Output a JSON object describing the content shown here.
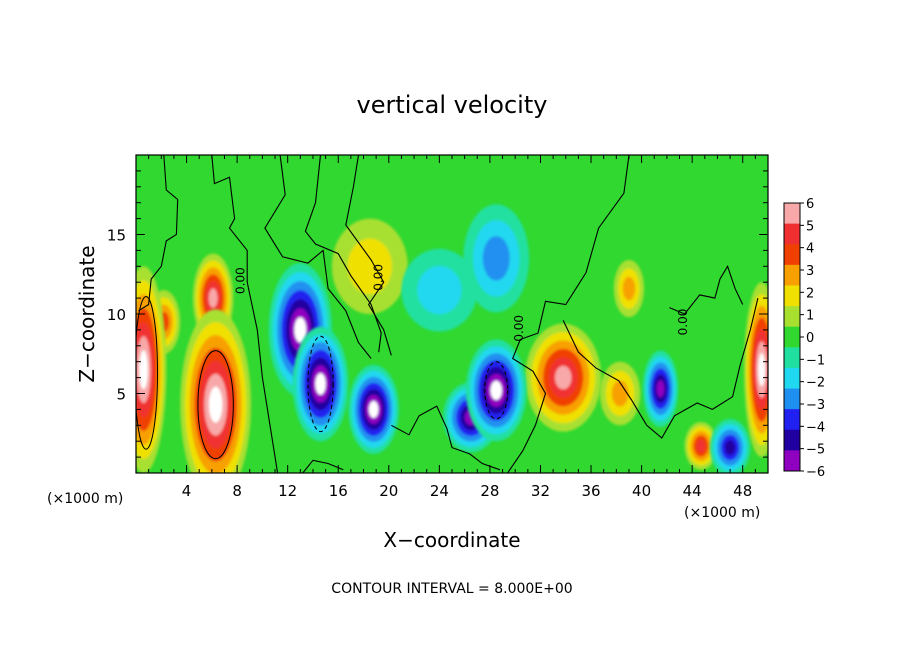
{
  "chart_data": {
    "type": "heatmap",
    "title": "vertical velocity",
    "xlabel": "X−coordinate",
    "ylabel": "Z−coordinate",
    "x_unit_left": "(×1000 m)",
    "x_unit_right": "(×1000 m)",
    "footer": "CONTOUR INTERVAL = 8.000E+00",
    "xlim": [
      0,
      50
    ],
    "ylim": [
      0,
      20
    ],
    "x_ticks": [
      4,
      8,
      12,
      16,
      20,
      24,
      28,
      32,
      36,
      40,
      44,
      48
    ],
    "x_tick_labels": [
      "4",
      "8",
      "12",
      "16",
      "20",
      "24",
      "28",
      "32",
      "36",
      "40",
      "44",
      "48"
    ],
    "y_ticks": [
      5,
      10,
      15
    ],
    "y_tick_labels": [
      "5",
      "10",
      "15"
    ],
    "colorbar": {
      "ticks": [
        6,
        5,
        4,
        3,
        2,
        1,
        0,
        -1,
        -2,
        -3,
        -4,
        -5,
        -6
      ],
      "tick_labels": [
        "6",
        "5",
        "4",
        "3",
        "2",
        "1",
        "0",
        "−1",
        "−2",
        "−3",
        "−4",
        "−5",
        "−6"
      ],
      "colors": [
        "#f8a8a8",
        "#f03030",
        "#f04000",
        "#f8a000",
        "#f0e000",
        "#a8e030",
        "#30d830",
        "#20e0a0",
        "#20d8f0",
        "#2090f0",
        "#2020f0",
        "#2000a0",
        "#9000c0"
      ]
    },
    "contour_labels": [
      {
        "text": "0.00",
        "x": 8.6,
        "z": 12.1
      },
      {
        "text": "0.00",
        "x": 19.5,
        "z": 12.3
      },
      {
        "text": "0.00",
        "x": 30.6,
        "z": 9.1
      },
      {
        "text": "0.00",
        "x": 43.6,
        "z": 9.5
      }
    ],
    "features": [
      {
        "name": "updraft-left-edge",
        "x": 0.6,
        "z": 6.5,
        "value": 8.0
      },
      {
        "name": "updraft-core-6km",
        "x": 6.3,
        "z": 4.3,
        "value": 8.0
      },
      {
        "name": "updraft-7km-upper",
        "x": 6.1,
        "z": 11.0,
        "value": 6.0
      },
      {
        "name": "updraft-2km-upper",
        "x": 2.2,
        "z": 9.5,
        "value": 4.0
      },
      {
        "name": "downdraft-13km",
        "x": 13.0,
        "z": 9.0,
        "value": -8.0
      },
      {
        "name": "downdraft-15km",
        "x": 14.6,
        "z": 5.6,
        "value": -8.0
      },
      {
        "name": "downdraft-19km",
        "x": 18.8,
        "z": 4.0,
        "value": -7.0
      },
      {
        "name": "downdraft-29km",
        "x": 28.5,
        "z": 5.2,
        "value": -8.0
      },
      {
        "name": "downdraft-26km",
        "x": 26.5,
        "z": 3.5,
        "value": -6.0
      },
      {
        "name": "updraft-34km",
        "x": 33.8,
        "z": 6.0,
        "value": 6.0
      },
      {
        "name": "updraft-38km",
        "x": 38.3,
        "z": 5.0,
        "value": 3.0
      },
      {
        "name": "updraft-39km-upper",
        "x": 39.0,
        "z": 11.6,
        "value": 3.0
      },
      {
        "name": "downdraft-41km",
        "x": 41.5,
        "z": 5.3,
        "value": -6.0
      },
      {
        "name": "updraft-44km",
        "x": 44.7,
        "z": 1.7,
        "value": 5.0
      },
      {
        "name": "downdraft-47km",
        "x": 47.0,
        "z": 1.6,
        "value": -5.0
      },
      {
        "name": "updraft-right-edge",
        "x": 49.5,
        "z": 6.5,
        "value": 7.0
      },
      {
        "name": "updraft-upper-centre",
        "x": 18.5,
        "z": 13.0,
        "value": 1.5
      },
      {
        "name": "downdraft-upper-28km",
        "x": 28.5,
        "z": 13.5,
        "value": -3.0
      },
      {
        "name": "downdraft-upper-24km",
        "x": 24.0,
        "z": 11.5,
        "value": -2.0
      }
    ]
  }
}
